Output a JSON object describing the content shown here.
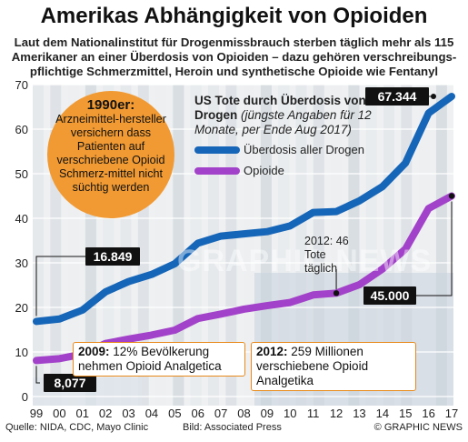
{
  "title": "Amerikas Abhängigkeit von Opioiden",
  "subtitle": "Laut dem Nationalinstitut für Drogenmissbrauch sterben täglich mehr als 115 Amerikaner an einer Überdosis von Opioiden – dazu gehören verschreibungs-pflichtige Schmerzmittel, Heroin und synthetische  Opioide wie Fentanyl",
  "note_1990": {
    "heading": "1990er:",
    "text": "Arzneimittel-hersteller versichern dass Patienten auf verschriebene Opioid Schmerz-mittel nicht süchtig werden"
  },
  "annotation_2012_deaths": "2012: 46 Tote täglich",
  "callout_2009": {
    "year": "2009:",
    "text": "12% Bevölkerung nehmen Opioid Analgetica"
  },
  "callout_2012": {
    "year": "2012:",
    "text": "259 Millionen verschiebene Opioid Analgetika"
  },
  "watermark": "GRAPHIC NEWS",
  "footer": {
    "source": "Quelle: NIDA, CDC, Mayo Clinic",
    "photo": "Bild: Associated Press",
    "credit": "© GRAPHIC NEWS"
  },
  "colors": {
    "series_all": "#1565b8",
    "series_opioid": "#a241c9",
    "note_orange": "#f19a33",
    "callout_border": "#e8891a"
  },
  "chart_data": {
    "type": "line",
    "title": "US Tote durch Überdosis von Drogen",
    "subtitle": "(jüngste Angaben für 12 Monate, per Ende Aug 2017)",
    "xlabel": "",
    "ylabel": "",
    "x_ticks": [
      "99",
      "00",
      "01",
      "02",
      "03",
      "04",
      "05",
      "06",
      "07",
      "08",
      "09",
      "10",
      "11",
      "12",
      "13",
      "14",
      "15",
      "16",
      "17"
    ],
    "ylim": [
      0,
      70
    ],
    "y_ticks": [
      0,
      10,
      20,
      30,
      40,
      50,
      60,
      70
    ],
    "grid": true,
    "series": [
      {
        "name": "Überdosis aller Drogen",
        "color": "#1565b8",
        "values": [
          16.849,
          17.4,
          19.4,
          23.5,
          25.8,
          27.4,
          29.8,
          34.4,
          36.0,
          36.5,
          37.0,
          38.3,
          41.3,
          41.5,
          43.9,
          47.1,
          52.4,
          63.6,
          67.344
        ]
      },
      {
        "name": "Opioide",
        "color": "#a241c9",
        "values": [
          8.077,
          8.5,
          9.5,
          11.9,
          12.9,
          13.8,
          14.9,
          17.5,
          18.5,
          19.6,
          20.4,
          21.1,
          22.8,
          23.2,
          25.1,
          28.6,
          33.1,
          42.2,
          45.0
        ]
      }
    ],
    "data_labels": {
      "all_first": "16.849",
      "all_last": "67.344",
      "opioid_first": "8,077",
      "opioid_last": "45.000"
    }
  }
}
